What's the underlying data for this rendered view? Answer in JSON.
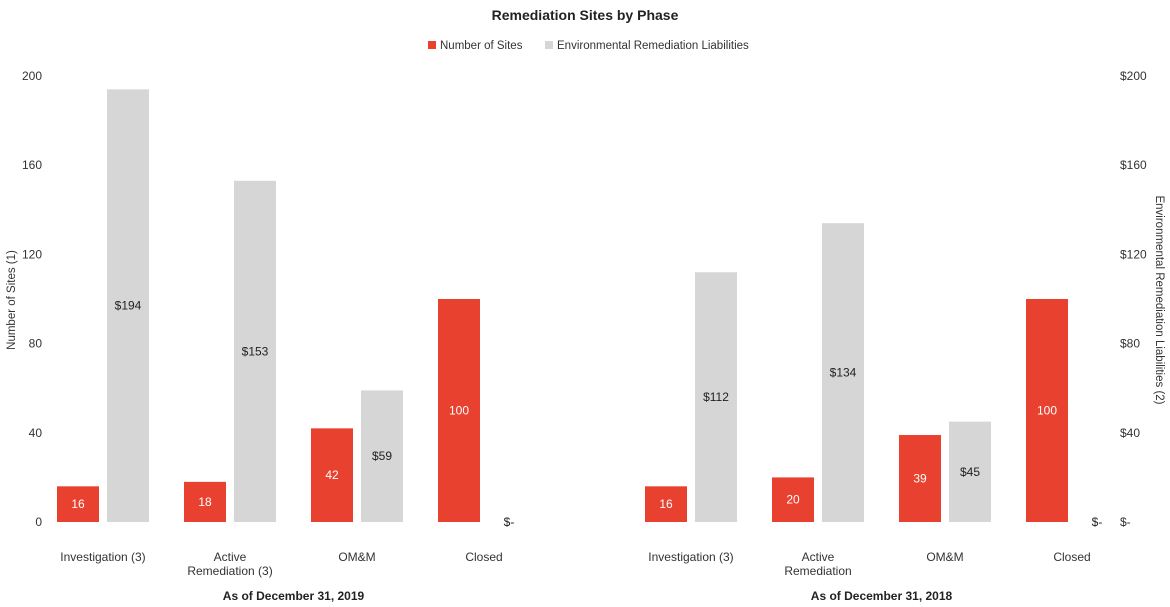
{
  "chart_data": {
    "type": "bar",
    "title": "Remediation Sites by Phase",
    "legend": {
      "placement": "top-center"
    },
    "colors": {
      "sites": "#e8412f",
      "liabilities": "#d6d6d6"
    },
    "y_left": {
      "label": "Number of Sites (1)",
      "ylim": [
        0,
        200
      ],
      "ticks": [
        "0",
        "40",
        "80",
        "120",
        "160",
        "200"
      ]
    },
    "y_right": {
      "label": "Environmental Remediation Liabilities (2)",
      "ylim": [
        0,
        200
      ],
      "ticks": [
        "$-",
        "$40",
        "$80",
        "$120",
        "$160",
        "$200"
      ]
    },
    "series": [
      {
        "name": "Number of Sites",
        "axis": "left"
      },
      {
        "name": "Environmental Remediation Liabilities",
        "axis": "right"
      }
    ],
    "groups": [
      {
        "label": "As of December 31, 2019",
        "categories": [
          {
            "label_lines": [
              "Investigation (3)"
            ],
            "sites": 16,
            "sites_label": "16",
            "liabilities": 194,
            "liabilities_label": "$194"
          },
          {
            "label_lines": [
              "Active",
              "Remediation (3)"
            ],
            "sites": 18,
            "sites_label": "18",
            "liabilities": 153,
            "liabilities_label": "$153"
          },
          {
            "label_lines": [
              "OM&M"
            ],
            "sites": 42,
            "sites_label": "42",
            "liabilities": 59,
            "liabilities_label": "$59"
          },
          {
            "label_lines": [
              "Closed"
            ],
            "sites": 100,
            "sites_label": "100",
            "liabilities": 0,
            "liabilities_label": "$-"
          }
        ]
      },
      {
        "label": "As of December 31, 2018",
        "categories": [
          {
            "label_lines": [
              "Investigation (3)"
            ],
            "sites": 16,
            "sites_label": "16",
            "liabilities": 112,
            "liabilities_label": "$112"
          },
          {
            "label_lines": [
              "Active",
              "Remediation"
            ],
            "sites": 20,
            "sites_label": "20",
            "liabilities": 134,
            "liabilities_label": "$134"
          },
          {
            "label_lines": [
              "OM&M"
            ],
            "sites": 39,
            "sites_label": "39",
            "liabilities": 45,
            "liabilities_label": "$45"
          },
          {
            "label_lines": [
              "Closed"
            ],
            "sites": 100,
            "sites_label": "100",
            "liabilities": 0,
            "liabilities_label": "$-"
          }
        ]
      }
    ]
  }
}
